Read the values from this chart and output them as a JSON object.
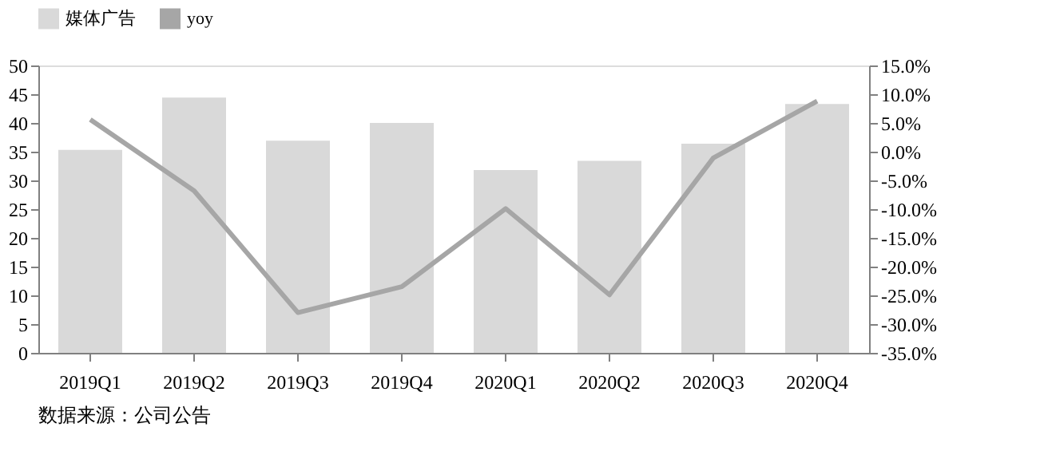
{
  "chart_data": {
    "type": "bar",
    "categories": [
      "2019Q1",
      "2019Q2",
      "2019Q3",
      "2019Q4",
      "2020Q1",
      "2020Q2",
      "2020Q3",
      "2020Q4"
    ],
    "series": [
      {
        "name": "媒体广告",
        "color": "#d9d9d9",
        "values": [
          35.3,
          44.4,
          36.9,
          40.0,
          31.8,
          33.4,
          36.4,
          43.3
        ]
      },
      {
        "name": "yoy",
        "type": "line",
        "axis": "y2",
        "color": "#a6a6a6",
        "values": [
          5.6,
          -6.8,
          -28.0,
          -23.5,
          -9.9,
          -24.9,
          -1.1,
          8.8
        ]
      }
    ],
    "ylim": [
      0,
      50
    ],
    "yticks": [
      0,
      5,
      10,
      15,
      20,
      25,
      30,
      35,
      40,
      45,
      50
    ],
    "y2lim": [
      -35,
      15
    ],
    "y2ticks": [
      {
        "value": 15,
        "label": "15.0%"
      },
      {
        "value": 10,
        "label": "10.0%"
      },
      {
        "value": 5,
        "label": "5.0%"
      },
      {
        "value": 0,
        "label": "0.0%"
      },
      {
        "value": -5,
        "label": "-5.0%"
      },
      {
        "value": -10,
        "label": "-10.0%"
      },
      {
        "value": -15,
        "label": "-15.0%"
      },
      {
        "value": -20,
        "label": "-20.0%"
      },
      {
        "value": -25,
        "label": "-25.0%"
      },
      {
        "value": -30,
        "label": "-30.0%"
      },
      {
        "value": -35,
        "label": "-35.0%"
      }
    ],
    "grid": false,
    "legend": "top",
    "marker": "none",
    "line_style": "solid",
    "annotations": [
      "数据来源：公司公告"
    ]
  }
}
